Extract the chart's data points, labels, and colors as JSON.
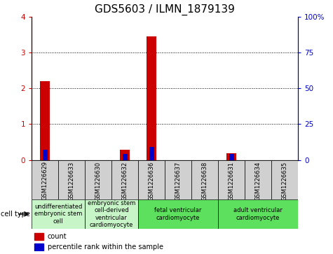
{
  "title": "GDS5603 / ILMN_1879139",
  "samples": [
    "GSM1226629",
    "GSM1226633",
    "GSM1226630",
    "GSM1226632",
    "GSM1226636",
    "GSM1226637",
    "GSM1226638",
    "GSM1226631",
    "GSM1226634",
    "GSM1226635"
  ],
  "count_values": [
    2.2,
    0.0,
    0.0,
    0.28,
    3.45,
    0.0,
    0.0,
    0.18,
    0.0,
    0.0
  ],
  "percentile_values": [
    7.0,
    0.0,
    0.0,
    4.0,
    9.0,
    0.0,
    0.0,
    4.0,
    0.0,
    0.0
  ],
  "ylim_left": [
    0,
    4
  ],
  "ylim_right": [
    0,
    100
  ],
  "yticks_left": [
    0,
    1,
    2,
    3,
    4
  ],
  "yticks_right": [
    0,
    25,
    50,
    75,
    100
  ],
  "ytick_labels_right": [
    "0",
    "25",
    "50",
    "75",
    "100%"
  ],
  "cell_types": [
    {
      "label": "undifferentiated\nembryonic stem\ncell",
      "span": [
        0,
        2
      ],
      "color": "#c8f5c8"
    },
    {
      "label": "embryonic stem\ncell-derived\nventricular\ncardiomyocyte",
      "span": [
        2,
        4
      ],
      "color": "#c8f5c8"
    },
    {
      "label": "fetal ventricular\ncardiomyocyte",
      "span": [
        4,
        7
      ],
      "color": "#5de05d"
    },
    {
      "label": "adult ventricular\ncardiomyocyte",
      "span": [
        7,
        10
      ],
      "color": "#5de05d"
    }
  ],
  "count_color": "#cc0000",
  "percentile_color": "#0000cc",
  "xlabel_area_color": "#d0d0d0",
  "legend_count_label": "count",
  "legend_percentile_label": "percentile rank within the sample",
  "cell_type_label": "cell type",
  "title_fontsize": 11,
  "tick_fontsize": 7.5,
  "sample_fontsize": 6,
  "ct_fontsize": 6
}
